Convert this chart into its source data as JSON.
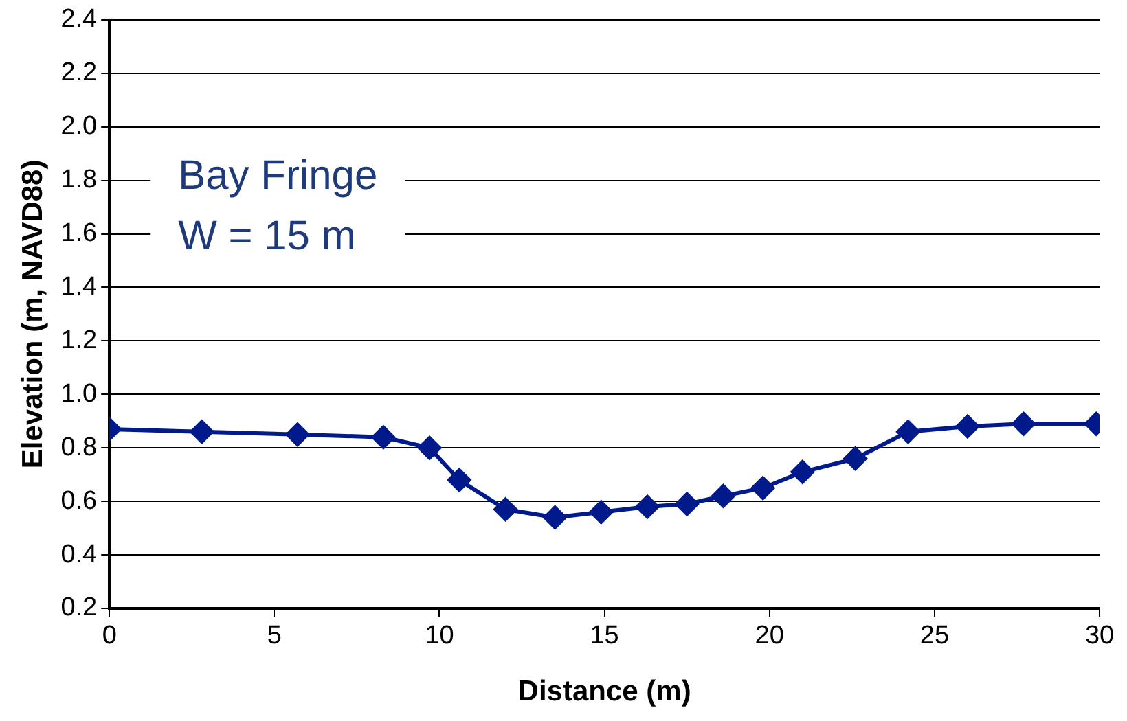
{
  "chart_data": {
    "type": "line",
    "xlabel": "Distance (m)",
    "ylabel": "Elevation (m, NAVD88)",
    "annotations": [
      "Bay Fringe",
      "W = 15 m"
    ],
    "series": [
      {
        "color": "#001a8c",
        "x": [
          0,
          2.8,
          5.7,
          8.3,
          9.7,
          10.6,
          12.0,
          13.5,
          14.9,
          16.3,
          17.5,
          18.6,
          19.8,
          21.0,
          22.6,
          24.2,
          26.0,
          27.7,
          29.9
        ],
        "values": [
          0.87,
          0.86,
          0.85,
          0.84,
          0.8,
          0.68,
          0.57,
          0.54,
          0.56,
          0.58,
          0.59,
          0.62,
          0.65,
          0.71,
          0.76,
          0.86,
          0.88,
          0.89,
          0.89
        ]
      }
    ],
    "xlim": [
      0,
      30
    ],
    "xticks": [
      0,
      5,
      10,
      15,
      20,
      25,
      30
    ],
    "ylim": [
      0.2,
      2.4
    ],
    "yticks": [
      {
        "value": 0.2,
        "label": "0.2"
      },
      {
        "value": 0.4,
        "label": "0.4"
      },
      {
        "value": 0.6,
        "label": "0.6"
      },
      {
        "value": 0.8,
        "label": "0.8"
      },
      {
        "value": 1.0,
        "label": "1.0"
      },
      {
        "value": 1.2,
        "label": "1.2"
      },
      {
        "value": 1.4,
        "label": "1.4"
      },
      {
        "value": 1.6,
        "label": "1.6"
      },
      {
        "value": 1.8,
        "label": "1.8"
      },
      {
        "value": 2.0,
        "label": "2.0"
      },
      {
        "value": 2.2,
        "label": "2.2"
      },
      {
        "value": 2.4,
        "label": "2.4"
      }
    ],
    "grid": "y",
    "legend": false,
    "marker": "diamond",
    "line_style": "solid"
  }
}
